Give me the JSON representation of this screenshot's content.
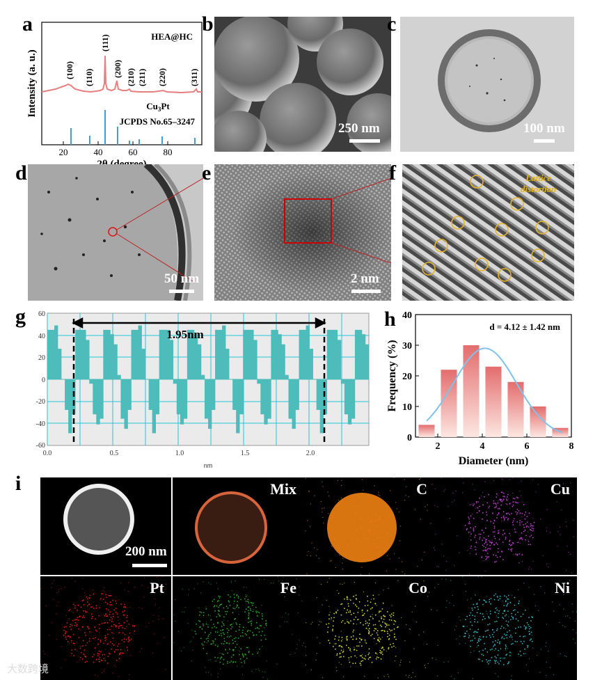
{
  "panels": {
    "a": "a",
    "b": "b",
    "c": "c",
    "d": "d",
    "e": "e",
    "f": "f",
    "g": "g",
    "h": "h",
    "i": "i"
  },
  "xrd": {
    "sample": "HEA@HC",
    "ref_phase": "Cu₃Pt",
    "ref_phase_main": "Cu",
    "ref_phase_sub": "3",
    "ref_phase_tail": "Pt",
    "ref_card": "JCPDS No.65–3247",
    "ylabel": "Intensity (a. u.)",
    "xlabel": "2θ (degree)",
    "peaks": [
      "(100)",
      "(110)",
      "(111)",
      "(200)",
      "(210)",
      "(211)",
      "(220)",
      "(311)"
    ],
    "xticks": [
      "20",
      "40",
      "60",
      "80"
    ]
  },
  "scalebars": {
    "b": "250 nm",
    "c": "100 nm",
    "d": "50 nm",
    "e": "2 nm",
    "i": "200 nm"
  },
  "fft": {
    "annotation_line1": "Lattice",
    "annotation_line2": "distortion"
  },
  "profile": {
    "measure": "1.95nm",
    "xlabel": "nm",
    "yticks": [
      "60",
      "40",
      "20",
      "0",
      "-20",
      "-40",
      "-60"
    ],
    "xticks": [
      "0.0",
      "0.5",
      "1.0",
      "1.5",
      "2.0"
    ]
  },
  "chart_data": {
    "type": "bar",
    "categories": [
      "1.5",
      "2.5",
      "3.5",
      "4.5",
      "5.5",
      "6.5",
      "7.5"
    ],
    "values": [
      4,
      22,
      30,
      23,
      18,
      10,
      3
    ],
    "annotation": "d = 4.12 ± 1.42 nm",
    "xlabel": "Diameter (nm)",
    "ylabel": "Frequency (%)",
    "xlim": [
      1,
      8
    ],
    "ylim": [
      0,
      40
    ],
    "xticks": [
      "2",
      "4",
      "6",
      "8"
    ],
    "yticks": [
      "0",
      "10",
      "20",
      "30",
      "40"
    ],
    "fit_line": "gaussian",
    "bar_color": "#e36d6d",
    "fit_color": "#7ec3ec"
  },
  "mapping": {
    "tiles": [
      "",
      "Mix",
      "C",
      "Cu",
      "Pt",
      "Fe",
      "Co",
      "Ni"
    ],
    "colors": [
      "#ffffff",
      "#d8643c",
      "#ff8a14",
      "#c03ad0",
      "#e41a1a",
      "#25a825",
      "#d4d42a",
      "#2ab5c3"
    ]
  },
  "watermark": "大数跨境"
}
